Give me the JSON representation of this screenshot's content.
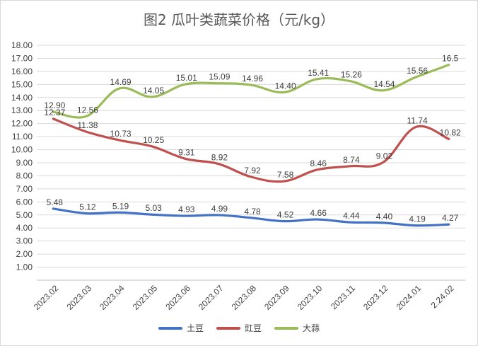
{
  "chart_data": {
    "type": "line",
    "title": "图2  瓜叶类蔬菜价格（元/kg）",
    "categories": [
      "2023.02",
      "2023.03",
      "2023.04",
      "2023.05",
      "2023.06",
      "2023.07",
      "2023.08",
      "2023.09",
      "2023.10",
      "2023.11",
      "2023.12",
      "2024.01",
      "2.24.02"
    ],
    "ylim": [
      0,
      18
    ],
    "yticks": [
      "1.00",
      "2.00",
      "3.00",
      "4.00",
      "5.00",
      "6.00",
      "7.00",
      "8.00",
      "9.00",
      "10.00",
      "11.00",
      "12.00",
      "13.00",
      "14.00",
      "15.00",
      "16.00",
      "17.00",
      "18.00"
    ],
    "grid": true,
    "legend_position": "bottom",
    "series": [
      {
        "name": "土豆",
        "color": "#4472c4",
        "values": [
          5.48,
          5.12,
          5.19,
          5.03,
          4.93,
          4.99,
          4.78,
          4.52,
          4.66,
          4.44,
          4.4,
          4.19,
          4.27
        ],
        "labels": [
          "5.48",
          "5.12",
          "5.19",
          "5.03",
          "4.93",
          "4.99",
          "4.78",
          "4.52",
          "4.66",
          "4.44",
          "4.40",
          "4.19",
          "4.27"
        ]
      },
      {
        "name": "豇豆",
        "color": "#c0504d",
        "values": [
          12.37,
          11.38,
          10.73,
          10.25,
          9.31,
          8.92,
          7.92,
          7.58,
          8.46,
          8.74,
          9.02,
          11.74,
          10.82
        ],
        "labels": [
          "12.37",
          "11.38",
          "10.73",
          "10.25",
          "9.31",
          "8.92",
          "7.92",
          "7.58",
          "8.46",
          "8.74",
          "9.02",
          "11.74",
          "10.82"
        ]
      },
      {
        "name": "大蒜",
        "color": "#9bbb59",
        "values": [
          12.9,
          12.56,
          14.69,
          14.05,
          15.01,
          15.09,
          14.96,
          14.4,
          15.41,
          15.26,
          14.54,
          15.56,
          16.5
        ],
        "labels": [
          "12.90",
          "12.56",
          "14.69",
          "14.05",
          "15.01",
          "15.09",
          "14.96",
          "14.40",
          "15.41",
          "15.26",
          "14.54",
          "15.56",
          "16.5"
        ]
      }
    ]
  }
}
